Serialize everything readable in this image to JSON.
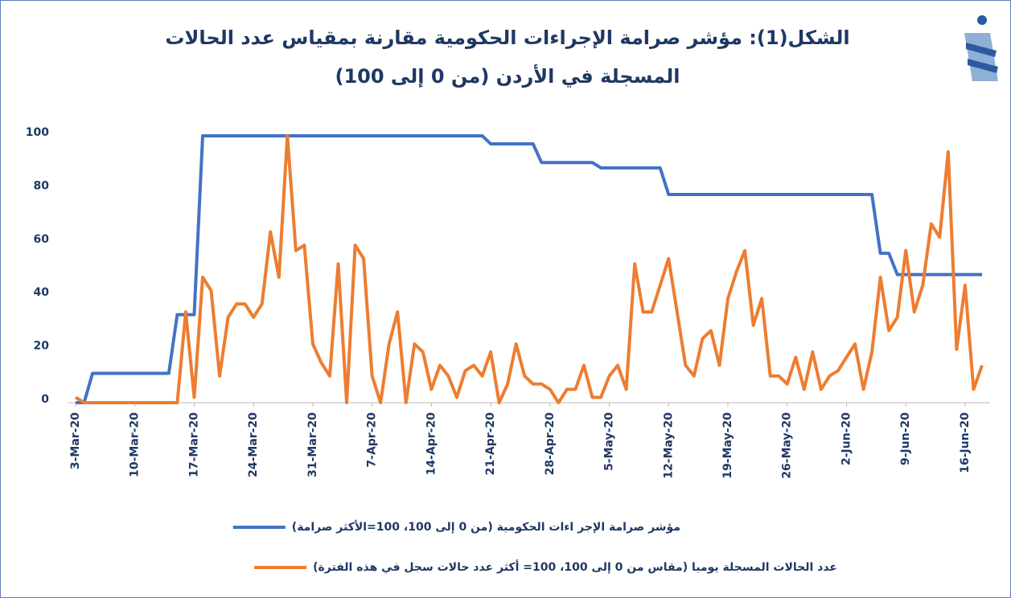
{
  "chart_data": {
    "type": "line",
    "title": "الشكل(1): مؤشر صرامة الإجراءات الحكومية مقارنة بمقياس عدد الحالات المسجلة في الأردن (من 0 إلى 100)",
    "categories": [
      "3-Mar-20",
      null,
      null,
      null,
      null,
      null,
      null,
      "10-Mar-20",
      null,
      null,
      null,
      null,
      null,
      null,
      "17-Mar-20",
      null,
      null,
      null,
      null,
      null,
      null,
      "24-Mar-20",
      null,
      null,
      null,
      null,
      null,
      null,
      "31-Mar-20",
      null,
      null,
      null,
      null,
      null,
      null,
      "7-Apr-20",
      null,
      null,
      null,
      null,
      null,
      null,
      "14-Apr-20",
      null,
      null,
      null,
      null,
      null,
      null,
      "21-Apr-20",
      null,
      null,
      null,
      null,
      null,
      null,
      "28-Apr-20",
      null,
      null,
      null,
      null,
      null,
      null,
      "5-May-20",
      null,
      null,
      null,
      null,
      null,
      null,
      "12-May-20",
      null,
      null,
      null,
      null,
      null,
      null,
      "19-May-20",
      null,
      null,
      null,
      null,
      null,
      null,
      "26-May-20",
      null,
      null,
      null,
      null,
      null,
      null,
      "2-Jun-20",
      null,
      null,
      null,
      null,
      null,
      null,
      "9-Jun-20",
      null,
      null,
      null,
      null,
      null,
      null,
      "16-Jun-20",
      null,
      null
    ],
    "series": [
      {
        "name": "مؤشر صرامة الإجر اءات الحكومية (من 0 إلى 100، 100=الأكثر صرامة)",
        "color": "#4472c4",
        "values": [
          0,
          0,
          11,
          11,
          11,
          11,
          11,
          11,
          11,
          11,
          11,
          11,
          33,
          33,
          33,
          100,
          100,
          100,
          100,
          100,
          100,
          100,
          100,
          100,
          100,
          100,
          100,
          100,
          100,
          100,
          100,
          100,
          100,
          100,
          100,
          100,
          100,
          100,
          100,
          100,
          100,
          100,
          100,
          100,
          100,
          100,
          100,
          100,
          100,
          97,
          97,
          97,
          97,
          97,
          97,
          90,
          90,
          90,
          90,
          90,
          90,
          90,
          88,
          88,
          88,
          88,
          88,
          88,
          88,
          88,
          78,
          78,
          78,
          78,
          78,
          78,
          78,
          78,
          78,
          78,
          78,
          78,
          78,
          78,
          78,
          78,
          78,
          78,
          78,
          78,
          78,
          78,
          78,
          78,
          78,
          56,
          56,
          48,
          48,
          48,
          48,
          48,
          48,
          48,
          48,
          48,
          48,
          48
        ]
      },
      {
        "name": "عدد الحالات المسجلة يوميا (مقاس من 0 إلى 100، 100= أكثر عدد حالات سجل في هذه الفترة)",
        "color": "#ed7d31",
        "values": [
          2,
          0,
          0,
          0,
          0,
          0,
          0,
          0,
          0,
          0,
          0,
          0,
          0,
          34,
          2,
          47,
          42,
          10,
          32,
          37,
          37,
          32,
          37,
          64,
          47,
          100,
          57,
          59,
          22,
          15,
          10,
          52,
          0,
          59,
          54,
          10,
          0,
          22,
          34,
          0,
          22,
          19,
          5,
          14,
          10,
          2,
          12,
          14,
          10,
          19,
          0,
          7,
          22,
          10,
          7,
          7,
          5,
          0,
          5,
          5,
          14,
          2,
          2,
          10,
          14,
          5,
          52,
          34,
          34,
          44,
          54,
          34,
          14,
          10,
          24,
          27,
          14,
          39,
          49,
          57,
          29,
          39,
          10,
          10,
          7,
          17,
          5,
          19,
          5,
          10,
          12,
          17,
          22,
          5,
          19,
          47,
          27,
          32,
          57,
          34,
          44,
          67,
          62,
          94,
          20,
          44,
          5,
          14
        ]
      }
    ],
    "ylim": [
      0,
      100
    ],
    "yticks": [
      0,
      20,
      40,
      60,
      80,
      100
    ],
    "grid": false
  }
}
